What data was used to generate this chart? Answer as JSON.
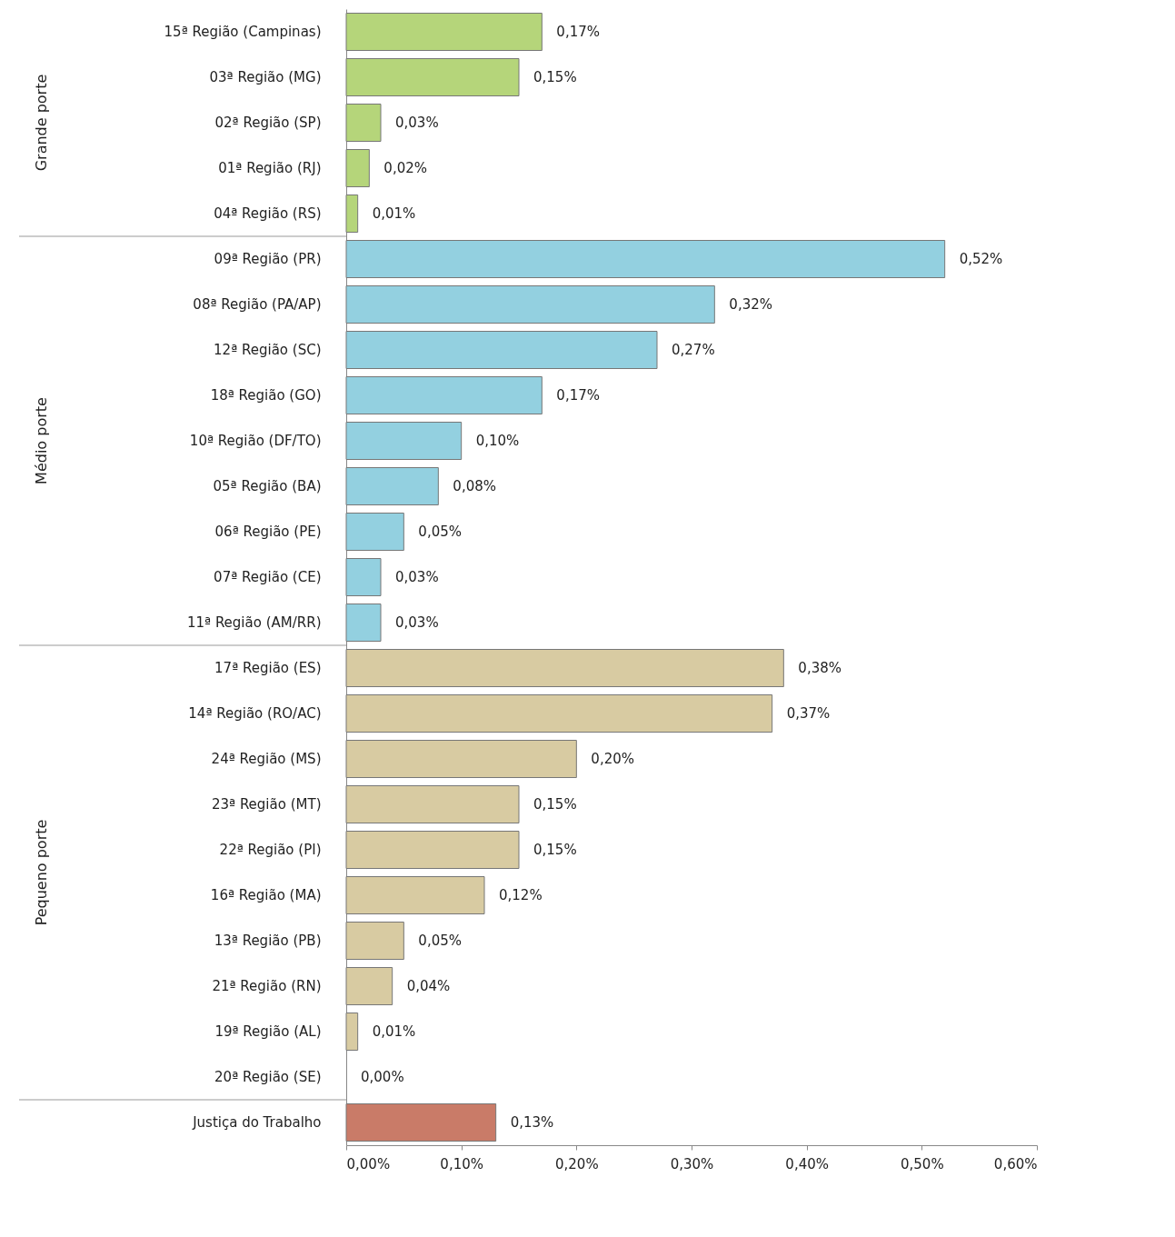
{
  "chart_data": {
    "type": "bar",
    "orientation": "horizontal",
    "grid": false,
    "value_labels": [
      "0,17%",
      "0,15%",
      "0,03%",
      "0,02%",
      "0,01%",
      "0,52%",
      "0,32%",
      "0,27%",
      "0,17%",
      "0,10%",
      "0,08%",
      "0,05%",
      "0,03%",
      "0,03%",
      "0,38%",
      "0,37%",
      "0,20%",
      "0,15%",
      "0,15%",
      "0,12%",
      "0,05%",
      "0,04%",
      "0,01%",
      "0,00%",
      "0,13%"
    ],
    "categories": [
      "15ª Região (Campinas)",
      "03ª Região (MG)",
      "02ª Região (SP)",
      "01ª Região (RJ)",
      "04ª Região (RS)",
      "09ª Região (PR)",
      "08ª Região (PA/AP)",
      "12ª Região (SC)",
      "18ª Região (GO)",
      "10ª Região (DF/TO)",
      "05ª Região (BA)",
      "06ª Região (PE)",
      "07ª Região (CE)",
      "11ª Região (AM/RR)",
      "17ª Região (ES)",
      "14ª Região (RO/AC)",
      "24ª Região (MS)",
      "23ª Região (MT)",
      "22ª Região (PI)",
      "16ª Região (MA)",
      "13ª Região (PB)",
      "21ª Região (RN)",
      "19ª Região (AL)",
      "20ª Região (SE)",
      "Justiça do Trabalho"
    ],
    "values": [
      0.17,
      0.15,
      0.03,
      0.02,
      0.01,
      0.52,
      0.32,
      0.27,
      0.17,
      0.1,
      0.08,
      0.05,
      0.03,
      0.03,
      0.38,
      0.37,
      0.2,
      0.15,
      0.15,
      0.12,
      0.05,
      0.04,
      0.01,
      0.0,
      0.13
    ],
    "colors": [
      "#b5d57a",
      "#b5d57a",
      "#b5d57a",
      "#b5d57a",
      "#b5d57a",
      "#93d0e0",
      "#93d0e0",
      "#93d0e0",
      "#93d0e0",
      "#93d0e0",
      "#93d0e0",
      "#93d0e0",
      "#93d0e0",
      "#93d0e0",
      "#d8cba2",
      "#d8cba2",
      "#d8cba2",
      "#d8cba2",
      "#d8cba2",
      "#d8cba2",
      "#d8cba2",
      "#d8cba2",
      "#d8cba2",
      "#d8cba2",
      "#c97b68"
    ],
    "xlim": [
      0,
      0.6
    ],
    "xticks": [
      {
        "value": 0,
        "label": "0,00%"
      },
      {
        "value": 0.1,
        "label": "0,10%"
      },
      {
        "value": 0.2,
        "label": "0,20%"
      },
      {
        "value": 0.3,
        "label": "0,30%"
      },
      {
        "value": 0.4,
        "label": "0,40%"
      },
      {
        "value": 0.5,
        "label": "0,50%"
      },
      {
        "value": 0.6,
        "label": "0,60%"
      }
    ],
    "annotations": [
      "Grande porte",
      "Médio porte",
      "Pequeno porte"
    ]
  }
}
